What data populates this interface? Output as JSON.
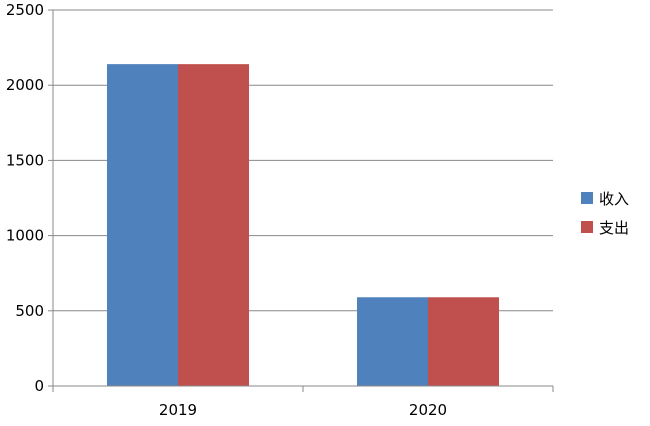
{
  "chart_data": {
    "type": "bar",
    "categories": [
      "2019",
      "2020"
    ],
    "series": [
      {
        "name": "收入",
        "values": [
          2140,
          590
        ],
        "color": "#4F81BD"
      },
      {
        "name": "支出",
        "values": [
          2140,
          590
        ],
        "color": "#C0504D"
      }
    ],
    "y_ticks": [
      0,
      500,
      1000,
      1500,
      2000,
      2500
    ],
    "ylim": [
      0,
      2500
    ],
    "grid": true,
    "grid_color": "#888888",
    "axis_color": "#888888",
    "legend_position": "right"
  }
}
